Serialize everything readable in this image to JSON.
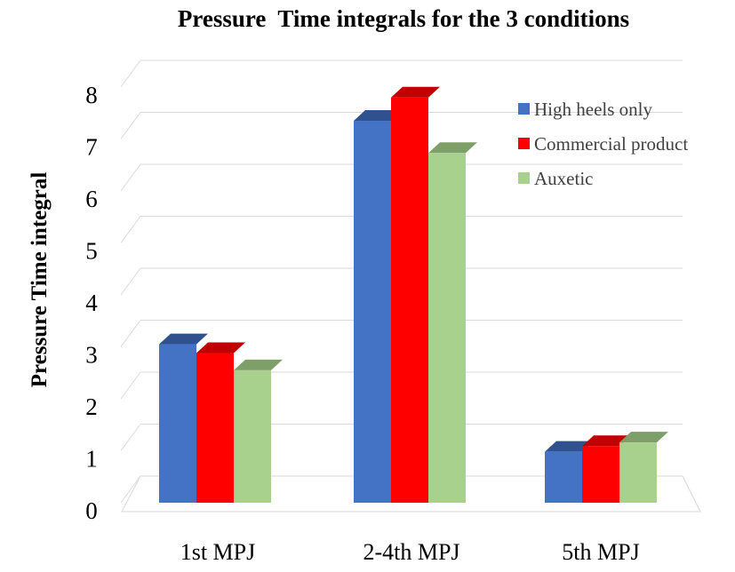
{
  "chart_data": {
    "type": "bar",
    "title": "Pressure  Time integrals for the 3 conditions",
    "xlabel": "",
    "ylabel": "Pressure Time integral",
    "ylim": [
      0,
      8
    ],
    "yticks": [
      "0",
      "1",
      "2",
      "3",
      "4",
      "5",
      "6",
      "7",
      "8"
    ],
    "categories": [
      "1st MPJ",
      "2-4th MPJ",
      "5th MPJ"
    ],
    "series": [
      {
        "name": "High heels only",
        "values": [
          3.05,
          7.35,
          0.98
        ],
        "color": "#4472C4",
        "top_color": "#2F528F"
      },
      {
        "name": "Commercial product",
        "values": [
          2.88,
          7.8,
          1.09
        ],
        "color": "#FF0000",
        "top_color": "#C00000"
      },
      {
        "name": "Auxetic",
        "values": [
          2.55,
          6.73,
          1.16
        ],
        "color": "#A9D18E",
        "top_color": "#7F9F6A"
      }
    ],
    "grid": true,
    "legend_position": "top-right",
    "style": "3d-clustered-column"
  }
}
